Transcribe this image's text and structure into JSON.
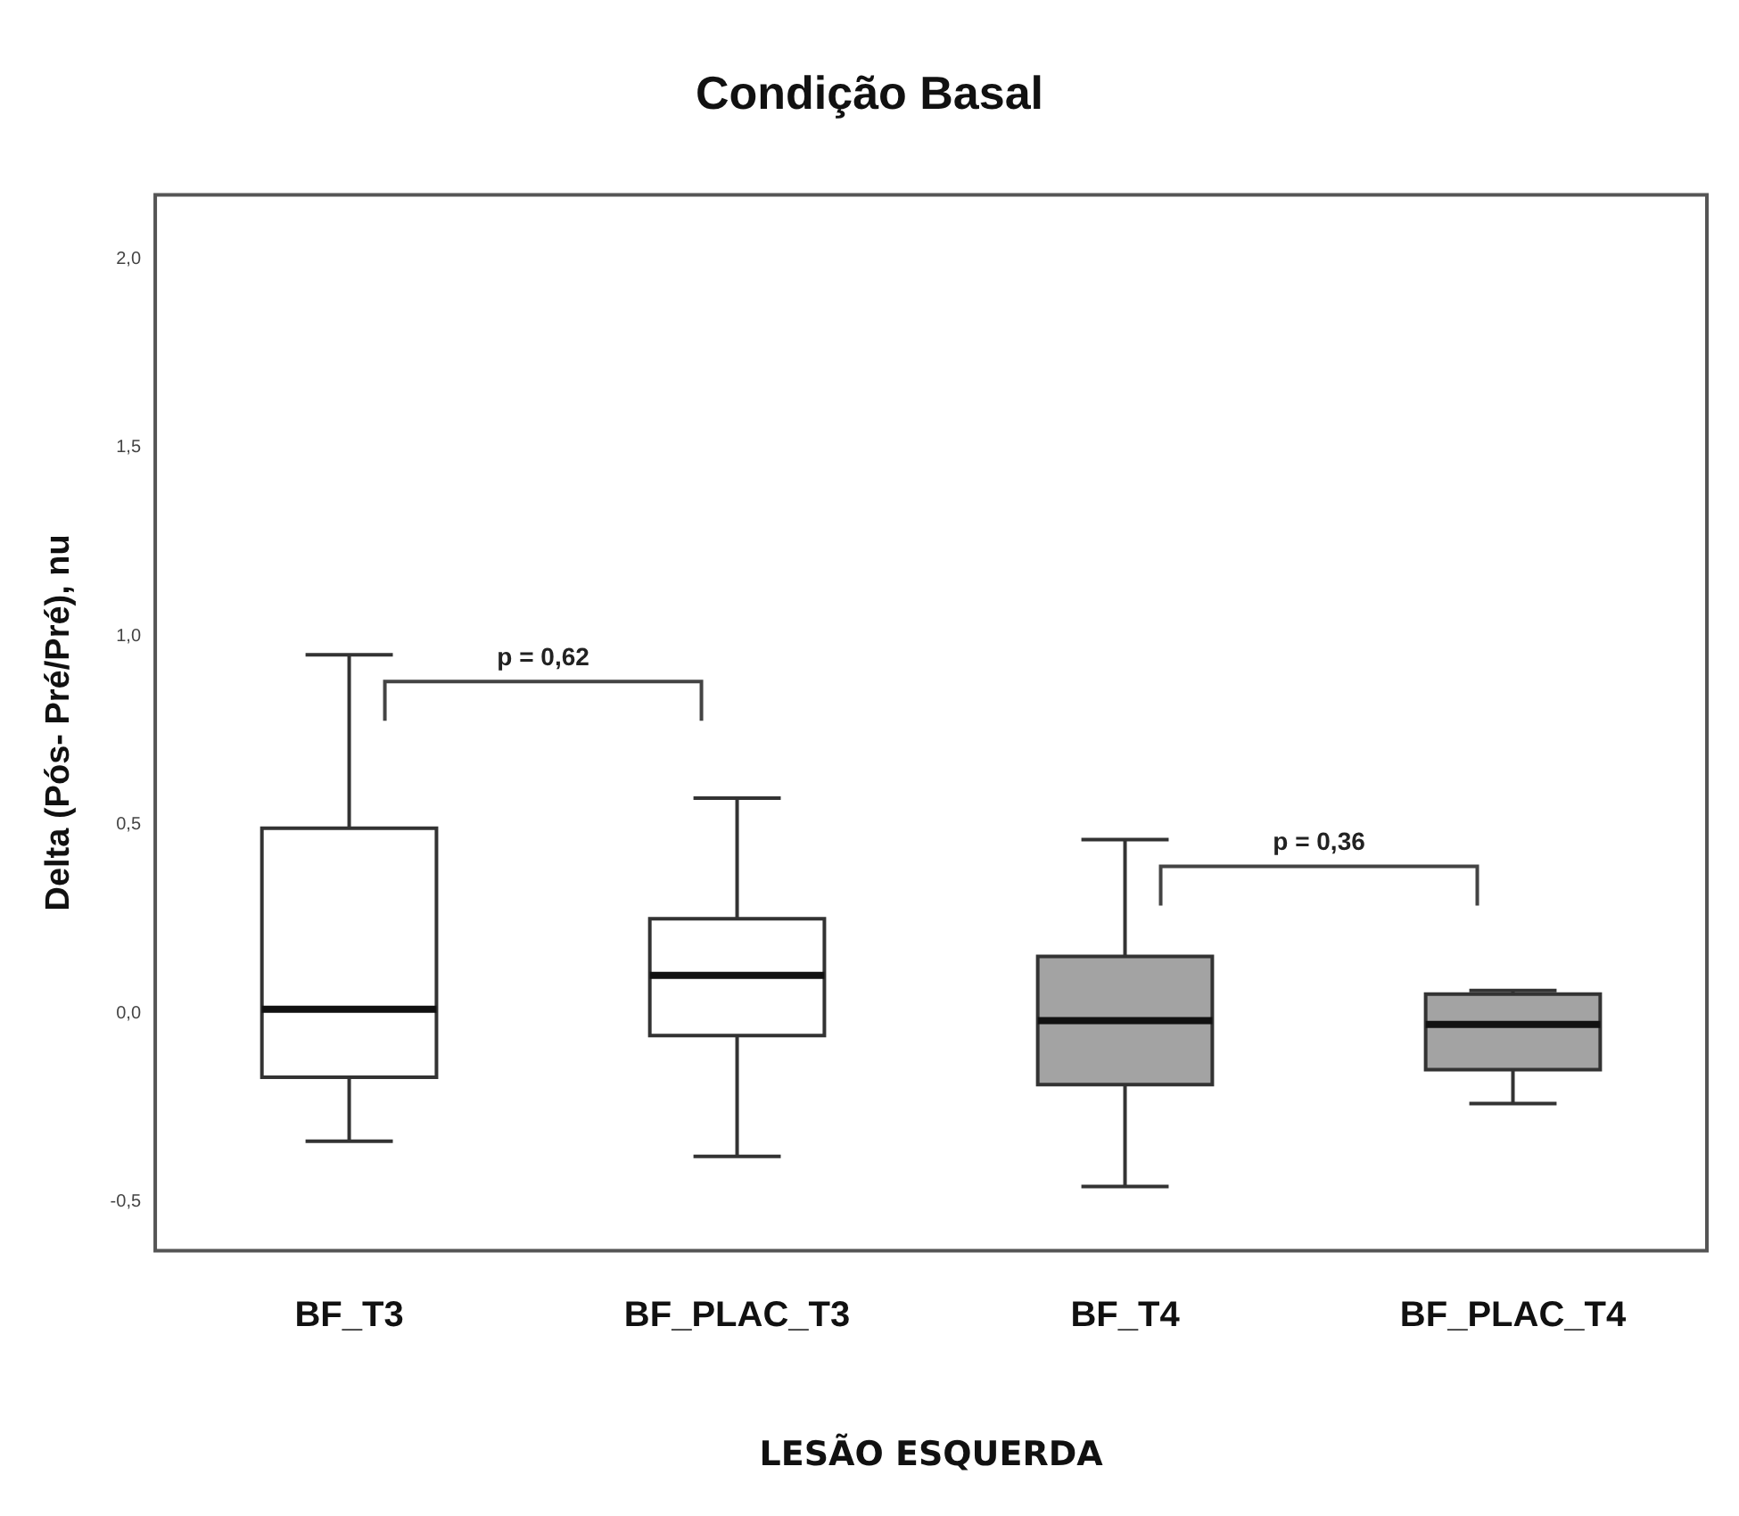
{
  "chart_data": {
    "type": "box",
    "title": "Condição Basal",
    "xlabel": "LESÃO ESQUERDA",
    "ylabel": "Delta (Pós- Pré/Pré), nu",
    "categories": [
      "BF_T3",
      "BF_PLAC_T3",
      "BF_T4",
      "BF_PLAC_T4"
    ],
    "colors": [
      "#ffffff",
      "#ffffff",
      "#a3a3a3",
      "#a3a3a3"
    ],
    "boxes": [
      {
        "low": -0.34,
        "q1": -0.17,
        "median": 0.01,
        "q3": 0.49,
        "high": 0.95
      },
      {
        "low": -0.38,
        "q1": -0.06,
        "median": 0.1,
        "q3": 0.25,
        "high": 0.57
      },
      {
        "low": -0.46,
        "q1": -0.19,
        "median": -0.02,
        "q3": 0.15,
        "high": 0.46
      },
      {
        "low": -0.24,
        "q1": -0.15,
        "median": -0.03,
        "q3": 0.05,
        "high": 0.06
      }
    ],
    "ylim": [
      -0.63,
      2.17
    ],
    "yticks": [
      {
        "value": -0.5,
        "label": "-0,5"
      },
      {
        "value": 0,
        "label": "0,0"
      },
      {
        "value": 0.5,
        "label": "0,5"
      },
      {
        "value": 1,
        "label": "1,0"
      },
      {
        "value": 1.5,
        "label": "1,5"
      },
      {
        "value": 2,
        "label": "2,0"
      }
    ],
    "grid": false,
    "annotations": [
      "p = 0,62",
      "p = 0,36"
    ]
  }
}
